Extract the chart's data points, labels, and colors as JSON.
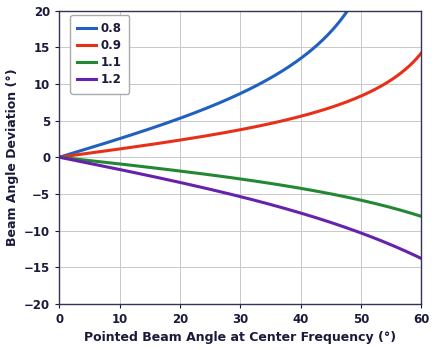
{
  "title": "",
  "xlabel": "Pointed Beam Angle at Center Frequency (°)",
  "ylabel": "Beam Angle Deviation (°)",
  "xlim": [
    0,
    60
  ],
  "ylim": [
    -20,
    20
  ],
  "xticks": [
    0,
    10,
    20,
    30,
    40,
    50,
    60
  ],
  "yticks": [
    -20,
    -15,
    -10,
    -5,
    0,
    5,
    10,
    15,
    20
  ],
  "series": [
    {
      "f_ratio": 0.8,
      "color": "#2060c0",
      "label": "0.8"
    },
    {
      "f_ratio": 0.9,
      "color": "#e83018",
      "label": "0.9"
    },
    {
      "f_ratio": 1.1,
      "color": "#228833",
      "label": "1.1"
    },
    {
      "f_ratio": 1.2,
      "color": "#6622aa",
      "label": "1.2"
    }
  ],
  "text_color": "#1a1a3a",
  "background_color": "#ffffff",
  "grid_color": "#c8c8c8",
  "spine_color": "#333355",
  "linewidth": 2.2,
  "label_fontsize": 9,
  "tick_fontsize": 8.5
}
